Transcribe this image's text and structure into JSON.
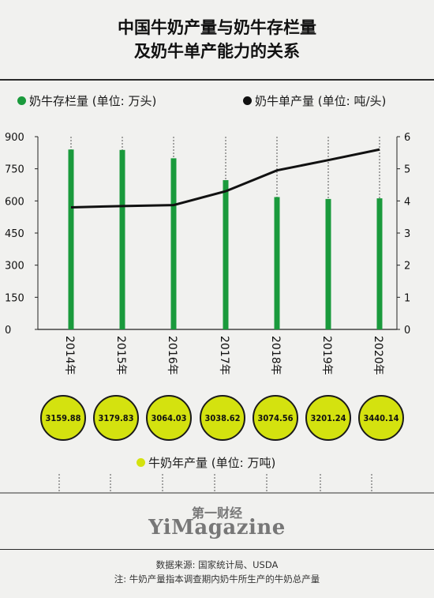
{
  "title_line1": "中国牛奶产量与奶牛存栏量",
  "title_line2": "及奶牛单产能力的关系",
  "legend": {
    "bars_label": "奶牛存栏量 (单位: 万头)",
    "line_label": "奶牛单产量 (单位: 吨/头)",
    "yield_label": "牛奶年产量 (单位: 万吨)"
  },
  "colors": {
    "bar": "#1a9a3c",
    "line": "#111111",
    "yield": "#d4e20f",
    "background": "#f1f1ef"
  },
  "chart_data": {
    "type": "bar",
    "categories": [
      "2014年",
      "2015年",
      "2016年",
      "2017年",
      "2018年",
      "2019年",
      "2020年"
    ],
    "series": [
      {
        "name": "奶牛存栏量 (单位: 万头)",
        "type": "bar",
        "axis": "left",
        "values": [
          840,
          838,
          799,
          697,
          618,
          609,
          612
        ]
      },
      {
        "name": "奶牛单产量 (单位: 吨/头)",
        "type": "line",
        "axis": "right",
        "values": [
          3.8,
          3.84,
          3.87,
          4.3,
          4.95,
          5.27,
          5.6
        ]
      },
      {
        "name": "牛奶年产量 (单位: 万吨)",
        "type": "label",
        "values": [
          3159.88,
          3179.83,
          3064.03,
          3038.62,
          3074.56,
          3201.24,
          3440.14
        ]
      }
    ],
    "y_left": {
      "ticks": [
        "0",
        "150",
        "300",
        "450",
        "600",
        "750",
        "900"
      ],
      "ylim": [
        0,
        900
      ]
    },
    "y_right": {
      "ticks": [
        "0",
        "1",
        "2",
        "3",
        "4",
        "5",
        "6"
      ],
      "ylim": [
        0,
        6
      ]
    },
    "grid": "vertical dashed",
    "legend_position": "top"
  },
  "brand": {
    "cn": "第一财经",
    "en": "YiMagazine"
  },
  "source": "数据来源: 国家统计局、USDA",
  "note": "注: 牛奶产量指本调查期内奶牛所生产的牛奶总产量"
}
